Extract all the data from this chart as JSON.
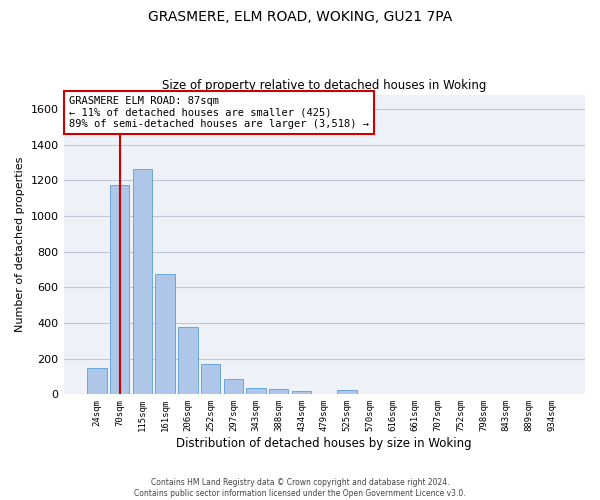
{
  "title_line1": "GRASMERE, ELM ROAD, WOKING, GU21 7PA",
  "title_line2": "Size of property relative to detached houses in Woking",
  "xlabel": "Distribution of detached houses by size in Woking",
  "ylabel": "Number of detached properties",
  "categories": [
    "24sqm",
    "70sqm",
    "115sqm",
    "161sqm",
    "206sqm",
    "252sqm",
    "297sqm",
    "343sqm",
    "388sqm",
    "434sqm",
    "479sqm",
    "525sqm",
    "570sqm",
    "616sqm",
    "661sqm",
    "707sqm",
    "752sqm",
    "798sqm",
    "843sqm",
    "889sqm",
    "934sqm"
  ],
  "values": [
    145,
    1175,
    1260,
    675,
    375,
    170,
    88,
    37,
    28,
    20,
    0,
    22,
    0,
    0,
    0,
    0,
    0,
    0,
    0,
    0,
    0
  ],
  "bar_color": "#aec6e8",
  "bar_edge_color": "#5a9fd4",
  "vline_x_idx": 1,
  "vline_color": "#cc0000",
  "annotation_text": "GRASMERE ELM ROAD: 87sqm\n← 11% of detached houses are smaller (425)\n89% of semi-detached houses are larger (3,518) →",
  "annotation_box_color": "#ffffff",
  "annotation_box_edge": "#cc0000",
  "ylim": [
    0,
    1680
  ],
  "yticks": [
    0,
    200,
    400,
    600,
    800,
    1000,
    1200,
    1400,
    1600
  ],
  "grid_color": "#c0c8d8",
  "background_color": "#eef2f8",
  "footer_line1": "Contains HM Land Registry data © Crown copyright and database right 2024.",
  "footer_line2": "Contains public sector information licensed under the Open Government Licence v3.0."
}
